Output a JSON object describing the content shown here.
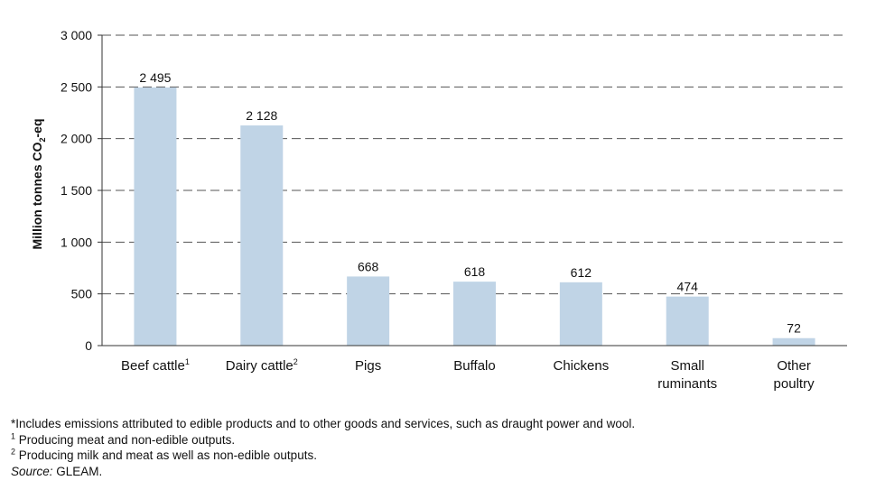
{
  "chart_data": {
    "type": "bar",
    "ylabel": "Million tonnes CO2-eq",
    "ylim": [
      0,
      3000
    ],
    "yticks": [
      0,
      500,
      1000,
      1500,
      2000,
      2500,
      3000
    ],
    "ytick_labels": [
      "0",
      "500",
      "1 000",
      "1 500",
      "2 000",
      "2 500",
      "3 000"
    ],
    "grid": true,
    "categories": [
      {
        "lines": [
          "Beef cattle"
        ],
        "sup": "1"
      },
      {
        "lines": [
          "Dairy cattle"
        ],
        "sup": "2"
      },
      {
        "lines": [
          "Pigs"
        ],
        "sup": ""
      },
      {
        "lines": [
          "Buffalo"
        ],
        "sup": ""
      },
      {
        "lines": [
          "Chickens"
        ],
        "sup": ""
      },
      {
        "lines": [
          "Small",
          "ruminants"
        ],
        "sup": ""
      },
      {
        "lines": [
          "Other",
          "poultry"
        ],
        "sup": ""
      }
    ],
    "values": [
      2495,
      2128,
      668,
      618,
      612,
      474,
      72
    ],
    "value_labels": [
      "2 495",
      "2 128",
      "668",
      "618",
      "612",
      "474",
      "72"
    ],
    "bar_color": "#c0d4e6"
  },
  "notes": {
    "asterisk_note": "*Includes emissions attributed to edible products and to other goods and services, such as draught power and wool.",
    "note1_mark": "1",
    "note1": " Producing meat and non-edible outputs.",
    "note2_mark": "2",
    "note2": " Producing milk and meat as well as non-edible outputs.",
    "source_label": "Source:",
    "source_text": " GLEAM."
  }
}
